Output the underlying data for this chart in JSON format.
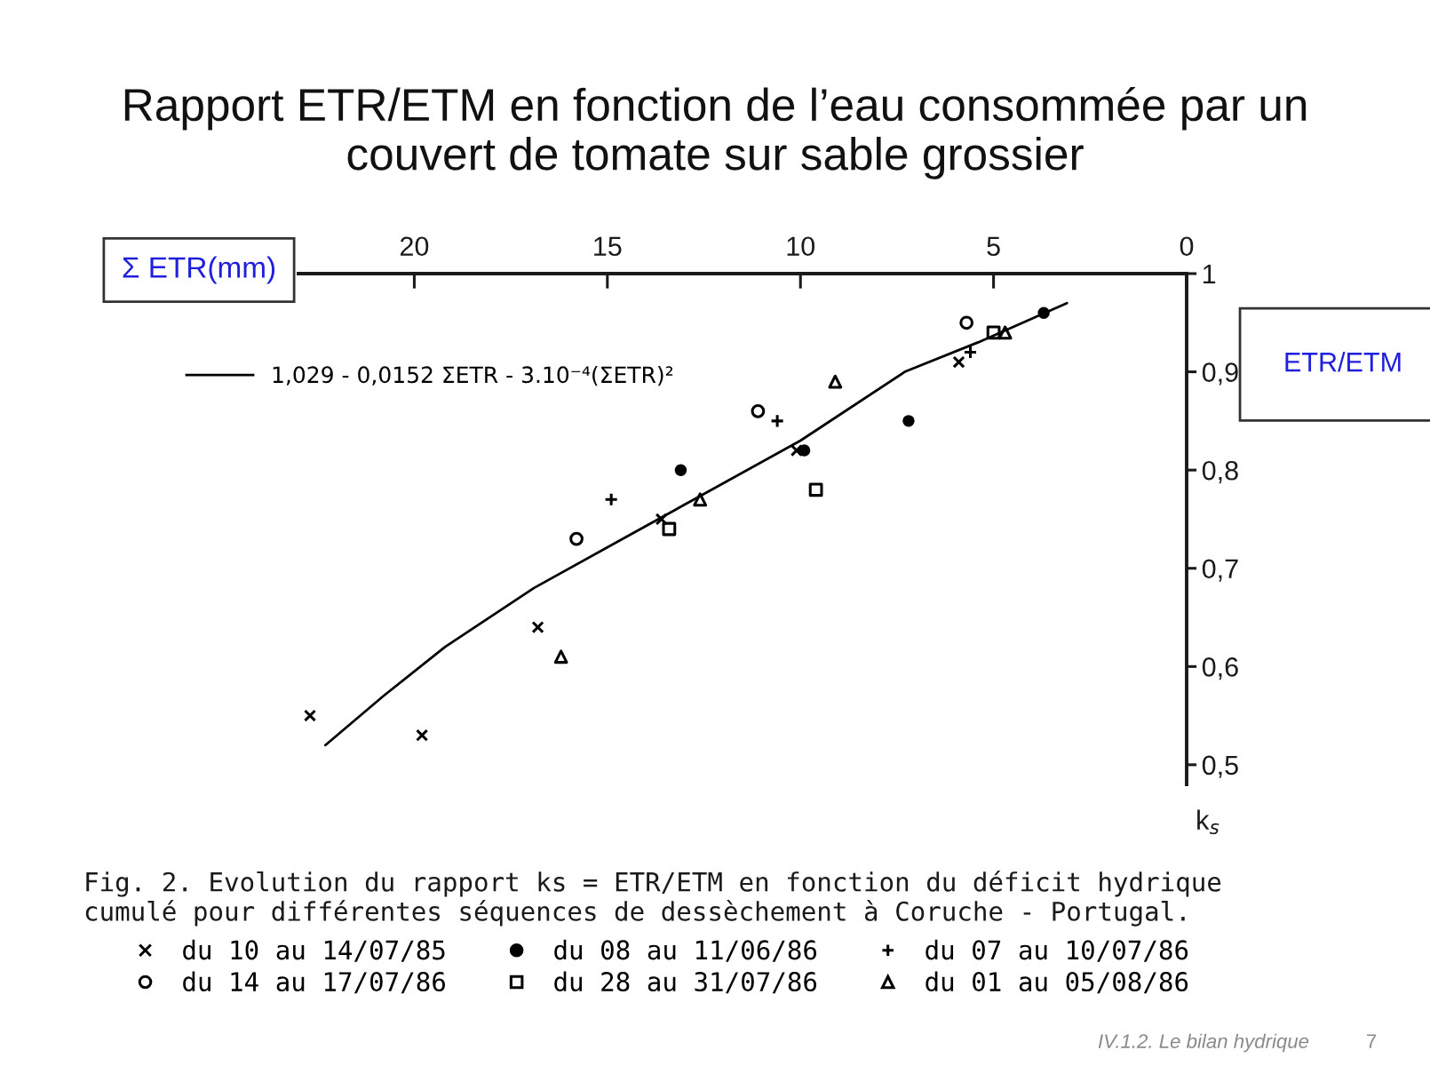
{
  "chart_data": {
    "type": "scatter",
    "title": "Rapport ETR/ETM en fonction de l’eau consommée par un couvert de tomate sur sable grossier",
    "xlabel": "Σ ETR(mm)",
    "ylabel": "ETR/ETM",
    "annotations": [
      "Fig. 2. Evolution du rapport ks = ETR/ETM en fonction du déficit hydrique cumulé pour différentes séquences de dessèchement à Coruche - Portugal.",
      "k$_{s}$",
      "IV.1.2. Le bilan hydrique",
      "7"
    ],
    "xlim": [
      23,
      0
    ],
    "xticks": [
      0,
      5,
      10,
      15,
      20
    ],
    "ylim": [
      0.48,
      1
    ],
    "yticks": [
      {
        "value": 0.5,
        "label": "0,5"
      },
      {
        "value": 0.6,
        "label": "0,6"
      },
      {
        "value": 0.7,
        "label": "0,7"
      },
      {
        "value": 0.8,
        "label": "0,8"
      },
      {
        "value": 0.9,
        "label": "0,9"
      },
      1
    ],
    "legend": "bottom",
    "series": [
      {
        "name": "du 10 au 14/07/85",
        "color": "#000000",
        "marker": "cross",
        "x": [
          22.7,
          19.8,
          16.8,
          13.6,
          10.1,
          5.9
        ],
        "values": [
          0.55,
          0.53,
          0.64,
          0.75,
          0.82,
          0.91
        ]
      },
      {
        "name": "du 08 au 11/06/86",
        "color": "#000000",
        "marker": "circle",
        "x": [
          13.1,
          9.9,
          7.2,
          3.7
        ],
        "values": [
          0.8,
          0.82,
          0.85,
          0.96
        ]
      },
      {
        "name": "du 07 au 10/07/86",
        "color": "#000000",
        "marker": "plus",
        "x": [
          14.9,
          10.6,
          5.6
        ],
        "values": [
          0.77,
          0.85,
          0.92
        ]
      },
      {
        "name": "du 14 au 17/07/86",
        "color": "#000000",
        "marker": "circle-open",
        "x": [
          15.8,
          11.1,
          5.7
        ],
        "values": [
          0.73,
          0.86,
          0.95
        ]
      },
      {
        "name": "du 28 au 31/07/86",
        "color": "#000000",
        "marker": "square-open",
        "x": [
          13.4,
          9.6,
          5.0
        ],
        "values": [
          0.74,
          0.78,
          0.94
        ]
      },
      {
        "name": "du 01 au 05/08/86",
        "color": "#000000",
        "marker": "triangle-open",
        "x": [
          16.2,
          12.6,
          9.1,
          4.7
        ],
        "values": [
          0.61,
          0.77,
          0.89,
          0.94
        ]
      },
      {
        "name": "1,029 - 0,0152 ΣETR - 3.10⁻⁴(ΣETR)²",
        "type": "line",
        "color": "#000000",
        "line_style": "solid",
        "x": [
          22.3,
          20.8,
          19.2,
          16.9,
          14.6,
          12.3,
          10.0,
          7.3,
          5.4,
          3.1
        ],
        "values": [
          0.52,
          0.57,
          0.62,
          0.68,
          0.73,
          0.78,
          0.83,
          0.9,
          0.93,
          0.97
        ]
      }
    ]
  }
}
